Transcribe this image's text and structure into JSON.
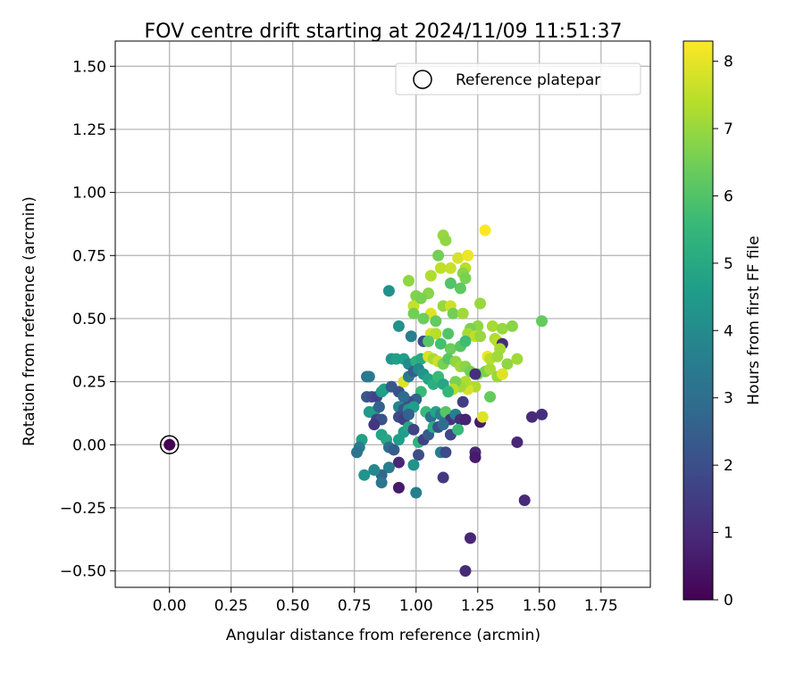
{
  "chart_data": {
    "type": "scatter",
    "title": "FOV centre drift starting at 2024/11/09 11:51:37",
    "xlabel": "Angular distance from reference (arcmin)",
    "ylabel": "Rotation from reference (arcmin)",
    "xlim": [
      -0.22,
      1.95
    ],
    "ylim": [
      -0.565,
      1.6
    ],
    "xticks": [
      0.0,
      0.25,
      0.5,
      0.75,
      1.0,
      1.25,
      1.5,
      1.75
    ],
    "xtick_labels": [
      "0.00",
      "0.25",
      "0.50",
      "0.75",
      "1.00",
      "1.25",
      "1.50",
      "1.75"
    ],
    "yticks": [
      -0.5,
      -0.25,
      0.0,
      0.25,
      0.5,
      0.75,
      1.0,
      1.25,
      1.5
    ],
    "ytick_labels": [
      "−0.50",
      "−0.25",
      "0.00",
      "0.25",
      "0.50",
      "0.75",
      "1.00",
      "1.25",
      "1.50"
    ],
    "grid": true,
    "legend": {
      "position": "top-right",
      "entries": [
        "Reference platepar"
      ]
    },
    "reference_point": {
      "x": 0.0,
      "y": 0.0,
      "hours": 0.0
    },
    "colorbar": {
      "label": "Hours from first FF file",
      "range": [
        0,
        8.3
      ],
      "ticks": [
        0,
        1,
        2,
        3,
        4,
        5,
        6,
        7,
        8
      ],
      "tick_labels": [
        "0",
        "1",
        "2",
        "3",
        "4",
        "5",
        "6",
        "7",
        "8"
      ],
      "colormap": "viridis"
    },
    "colormap_stops": [
      "#440154",
      "#482878",
      "#3e4989",
      "#31688e",
      "#26828e",
      "#1f9e89",
      "#35b779",
      "#6ece58",
      "#b5de2b",
      "#fde725"
    ],
    "points": [
      [
        1.28,
        0.85,
        8.3
      ],
      [
        1.11,
        0.83,
        7.0
      ],
      [
        1.12,
        0.81,
        6.9
      ],
      [
        1.09,
        0.75,
        6.5
      ],
      [
        1.17,
        0.74,
        7.8
      ],
      [
        1.21,
        0.75,
        8.1
      ],
      [
        1.1,
        0.7,
        7.5
      ],
      [
        1.14,
        0.7,
        7.6
      ],
      [
        1.2,
        0.7,
        7.4
      ],
      [
        1.19,
        0.68,
        6.8
      ],
      [
        1.2,
        0.66,
        6.6
      ],
      [
        1.18,
        0.62,
        6.2
      ],
      [
        1.14,
        0.64,
        6.0
      ],
      [
        1.06,
        0.67,
        7.3
      ],
      [
        0.97,
        0.65,
        6.9
      ],
      [
        0.89,
        0.61,
        4.2
      ],
      [
        1.05,
        0.6,
        6.8
      ],
      [
        1.0,
        0.59,
        6.7
      ],
      [
        0.99,
        0.55,
        7.6
      ],
      [
        1.02,
        0.58,
        6.6
      ],
      [
        1.11,
        0.55,
        7.0
      ],
      [
        1.14,
        0.55,
        7.7
      ],
      [
        1.15,
        0.52,
        6.5
      ],
      [
        1.19,
        0.52,
        7.1
      ],
      [
        1.06,
        0.52,
        7.9
      ],
      [
        0.99,
        0.52,
        6.5
      ],
      [
        1.26,
        0.56,
        7.0
      ],
      [
        1.03,
        0.5,
        6.4
      ],
      [
        1.08,
        0.49,
        6.3
      ],
      [
        1.51,
        0.49,
        6.3
      ],
      [
        0.93,
        0.47,
        4.2
      ],
      [
        1.25,
        0.47,
        6.9
      ],
      [
        1.31,
        0.47,
        7.2
      ],
      [
        1.35,
        0.46,
        7.0
      ],
      [
        1.39,
        0.47,
        6.8
      ],
      [
        1.22,
        0.46,
        6.6
      ],
      [
        1.06,
        0.44,
        7.8
      ],
      [
        1.08,
        0.44,
        7.4
      ],
      [
        1.13,
        0.44,
        6.0
      ],
      [
        1.21,
        0.44,
        7.2
      ],
      [
        1.24,
        0.43,
        7.5
      ],
      [
        1.26,
        0.43,
        7.0
      ],
      [
        1.32,
        0.42,
        7.3
      ],
      [
        1.33,
        0.41,
        7.4
      ],
      [
        0.98,
        0.43,
        3.6
      ],
      [
        1.03,
        0.41,
        2.0
      ],
      [
        1.05,
        0.41,
        6.1
      ],
      [
        1.1,
        0.4,
        5.8
      ],
      [
        1.14,
        0.38,
        6.4
      ],
      [
        1.18,
        0.39,
        6.1
      ],
      [
        1.2,
        0.41,
        5.7
      ],
      [
        1.29,
        0.35,
        8.1
      ],
      [
        1.35,
        0.4,
        1.0
      ],
      [
        1.34,
        0.38,
        7.2
      ],
      [
        1.3,
        0.34,
        7.4
      ],
      [
        1.33,
        0.35,
        7.1
      ],
      [
        1.37,
        0.32,
        6.9
      ],
      [
        1.41,
        0.34,
        7.1
      ],
      [
        0.9,
        0.34,
        4.3
      ],
      [
        0.92,
        0.34,
        4.7
      ],
      [
        0.95,
        0.34,
        4.6
      ],
      [
        0.97,
        0.32,
        4.0
      ],
      [
        1.0,
        0.33,
        5.3
      ],
      [
        1.02,
        0.34,
        5.0
      ],
      [
        1.05,
        0.35,
        7.8
      ],
      [
        1.07,
        0.34,
        7.2
      ],
      [
        1.09,
        0.33,
        7.7
      ],
      [
        1.11,
        0.32,
        6.6
      ],
      [
        1.13,
        0.34,
        6.1
      ],
      [
        1.16,
        0.33,
        6.9
      ],
      [
        1.18,
        0.31,
        7.1
      ],
      [
        1.2,
        0.31,
        6.8
      ],
      [
        1.22,
        0.29,
        6.5
      ],
      [
        1.25,
        0.28,
        6.4
      ],
      [
        1.28,
        0.29,
        6.6
      ],
      [
        1.3,
        0.3,
        7.2
      ],
      [
        1.33,
        0.27,
        7.0
      ],
      [
        1.35,
        0.28,
        7.9
      ],
      [
        1.24,
        0.23,
        7.3
      ],
      [
        1.21,
        0.22,
        7.8
      ],
      [
        1.2,
        0.25,
        7.3
      ],
      [
        1.18,
        0.23,
        7.1
      ],
      [
        1.16,
        0.25,
        6.6
      ],
      [
        1.15,
        0.22,
        7.4
      ],
      [
        1.3,
        0.19,
        6.3
      ],
      [
        1.24,
        0.28,
        1.1
      ],
      [
        1.19,
        0.17,
        1.5
      ],
      [
        0.8,
        0.27,
        3.1
      ],
      [
        0.81,
        0.27,
        3.4
      ],
      [
        0.8,
        0.19,
        2.3
      ],
      [
        0.82,
        0.19,
        2.0
      ],
      [
        0.84,
        0.19,
        1.7
      ],
      [
        0.86,
        0.21,
        4.6
      ],
      [
        0.87,
        0.22,
        4.7
      ],
      [
        0.9,
        0.23,
        2.3
      ],
      [
        0.93,
        0.21,
        2.1
      ],
      [
        0.95,
        0.25,
        7.9
      ],
      [
        0.97,
        0.27,
        3.4
      ],
      [
        0.99,
        0.29,
        2.5
      ],
      [
        1.01,
        0.3,
        3.9
      ],
      [
        1.03,
        0.28,
        4.3
      ],
      [
        1.05,
        0.26,
        4.8
      ],
      [
        1.07,
        0.24,
        5.2
      ],
      [
        1.09,
        0.27,
        5.6
      ],
      [
        1.11,
        0.24,
        4.9
      ],
      [
        1.13,
        0.21,
        5.5
      ],
      [
        1.02,
        0.21,
        5.6
      ],
      [
        1.0,
        0.18,
        2.6
      ],
      [
        0.97,
        0.17,
        2.0
      ],
      [
        0.95,
        0.19,
        2.9
      ],
      [
        0.93,
        0.15,
        3.8
      ],
      [
        0.95,
        0.14,
        2.2
      ],
      [
        0.97,
        0.14,
        4.4
      ],
      [
        0.99,
        0.15,
        4.6
      ],
      [
        0.81,
        0.13,
        4.4
      ],
      [
        0.83,
        0.13,
        4.6
      ],
      [
        0.85,
        0.15,
        2.6
      ],
      [
        0.84,
        0.1,
        1.7
      ],
      [
        0.86,
        0.1,
        2.1
      ],
      [
        0.83,
        0.08,
        1.3
      ],
      [
        0.93,
        0.11,
        1.9
      ],
      [
        0.95,
        0.1,
        1.6
      ],
      [
        0.97,
        0.12,
        2.6
      ],
      [
        1.04,
        0.13,
        5.6
      ],
      [
        1.06,
        0.11,
        3.1
      ],
      [
        1.08,
        0.13,
        4.8
      ],
      [
        1.1,
        0.12,
        3.6
      ],
      [
        1.12,
        0.13,
        6.1
      ],
      [
        1.14,
        0.1,
        1.3
      ],
      [
        1.16,
        0.12,
        3.6
      ],
      [
        1.18,
        0.1,
        1.1
      ],
      [
        1.2,
        0.1,
        0.8
      ],
      [
        1.26,
        0.09,
        0.6
      ],
      [
        1.27,
        0.11,
        7.9
      ],
      [
        1.47,
        0.11,
        1.0
      ],
      [
        1.51,
        0.12,
        1.1
      ],
      [
        1.41,
        0.01,
        0.9
      ],
      [
        1.44,
        -0.22,
        1.0
      ],
      [
        0.78,
        0.02,
        4.7
      ],
      [
        0.77,
        -0.01,
        3.5
      ],
      [
        0.76,
        -0.03,
        3.2
      ],
      [
        0.86,
        0.04,
        4.8
      ],
      [
        0.88,
        0.02,
        4.9
      ],
      [
        0.89,
        -0.01,
        3.0
      ],
      [
        0.91,
        -0.02,
        2.4
      ],
      [
        0.93,
        0.02,
        4.6
      ],
      [
        0.95,
        0.05,
        4.6
      ],
      [
        0.97,
        0.07,
        4.9
      ],
      [
        0.99,
        0.06,
        1.7
      ],
      [
        1.01,
        0.01,
        5.3
      ],
      [
        1.03,
        0.02,
        1.6
      ],
      [
        1.05,
        0.04,
        2.4
      ],
      [
        1.07,
        0.07,
        5.1
      ],
      [
        1.09,
        0.07,
        2.1
      ],
      [
        1.11,
        0.08,
        3.0
      ],
      [
        1.14,
        0.04,
        1.8
      ],
      [
        1.17,
        0.06,
        5.6
      ],
      [
        1.01,
        -0.04,
        2.0
      ],
      [
        0.99,
        -0.08,
        4.2
      ],
      [
        0.93,
        -0.07,
        0.9
      ],
      [
        0.89,
        -0.09,
        3.5
      ],
      [
        0.86,
        -0.12,
        2.8
      ],
      [
        0.86,
        -0.15,
        3.3
      ],
      [
        0.83,
        -0.1,
        3.9
      ],
      [
        0.79,
        -0.12,
        4.3
      ],
      [
        1.1,
        -0.03,
        3.6
      ],
      [
        1.12,
        -0.03,
        1.9
      ],
      [
        1.24,
        -0.03,
        0.9
      ],
      [
        1.24,
        -0.05,
        0.6
      ],
      [
        1.11,
        -0.13,
        1.4
      ],
      [
        0.93,
        -0.17,
        0.6
      ],
      [
        1.0,
        -0.19,
        3.6
      ],
      [
        1.22,
        -0.37,
        0.9
      ],
      [
        1.2,
        -0.5,
        1.0
      ]
    ]
  }
}
